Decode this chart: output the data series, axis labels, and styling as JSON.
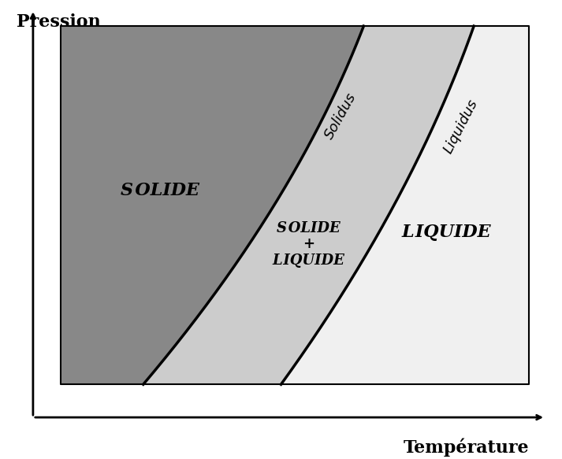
{
  "background_color": "#ffffff",
  "solid_color": "#888888",
  "mixed_color": "#cccccc",
  "liquid_color": "#f0f0f0",
  "line_color": "#000000",
  "line_width": 2.5,
  "xlabel": "Température",
  "ylabel": "Pression",
  "xlabel_fontsize": 16,
  "ylabel_fontsize": 16,
  "label_solide": "S OLIDE",
  "label_liquide": "L IQUIDE",
  "label_mixed": "S OLIDE\n+\nL IQUIDE",
  "label_solidus": "Solidus",
  "label_liquidus": "Liquidus",
  "xlim": [
    0,
    10
  ],
  "ylim": [
    0,
    10
  ]
}
